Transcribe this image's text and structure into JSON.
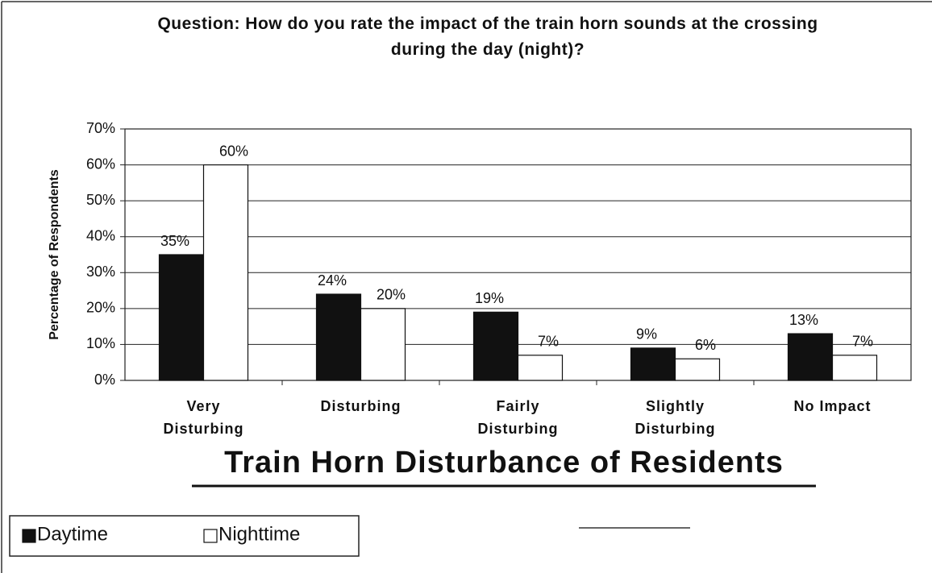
{
  "chart_data": {
    "type": "bar",
    "title": "Question: How do you rate the impact of the train horn sounds at the crossing during the day (night)?",
    "subtitle": "Train Horn Disturbance of Residents",
    "y_label": "Percentage of Respondents",
    "categories": [
      "Very Disturbing",
      "Disturbing",
      "Fairly Disturbing",
      "Slightly Disturbing",
      "No Impact"
    ],
    "series": [
      {
        "name": "Daytime",
        "color": "#111111",
        "values": [
          35,
          24,
          19,
          9,
          13
        ],
        "value_labels": [
          "35%",
          "24%",
          "19%",
          "9%",
          "13%"
        ]
      },
      {
        "name": "Nighttime",
        "color": "#ffffff",
        "values": [
          60,
          20,
          7,
          6,
          7
        ],
        "value_labels": [
          "60%",
          "20%",
          "7%",
          "6%",
          "7%"
        ]
      }
    ],
    "ylim": [
      0,
      70
    ],
    "yticks": [
      {
        "value": 0,
        "label": "0%"
      },
      {
        "value": 10,
        "label": "10%"
      },
      {
        "value": 20,
        "label": "20%"
      },
      {
        "value": 30,
        "label": "30%"
      },
      {
        "value": 40,
        "label": "40%"
      },
      {
        "value": 50,
        "label": "50%"
      },
      {
        "value": 60,
        "label": "60%"
      },
      {
        "value": 70,
        "label": "70%"
      }
    ],
    "grid": true,
    "legend": "bottom-left"
  }
}
